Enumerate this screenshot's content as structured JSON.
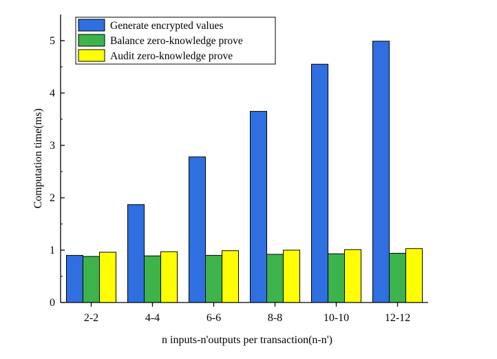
{
  "chart_data": {
    "type": "bar",
    "title": "",
    "xlabel": "n inputs-n'outputs per transaction(n-n')",
    "ylabel": "Computation time(ms)",
    "ylim": [
      0,
      5.5
    ],
    "yticks": [
      0,
      1,
      2,
      3,
      4,
      5
    ],
    "categories": [
      "2-2",
      "4-4",
      "6-6",
      "8-8",
      "10-10",
      "12-12"
    ],
    "series": [
      {
        "name": "Generate encrypted values",
        "color": "#2f6fe0",
        "values": [
          0.9,
          1.87,
          2.78,
          3.65,
          4.55,
          4.99
        ]
      },
      {
        "name": "Balance zero-knowledge prove",
        "color": "#3cb44b",
        "values": [
          0.88,
          0.89,
          0.9,
          0.92,
          0.93,
          0.94
        ]
      },
      {
        "name": "Audit zero-knowledge prove",
        "color": "#ffff00",
        "values": [
          0.96,
          0.97,
          0.99,
          1.0,
          1.01,
          1.03
        ]
      }
    ],
    "legend_position": "top-left"
  }
}
